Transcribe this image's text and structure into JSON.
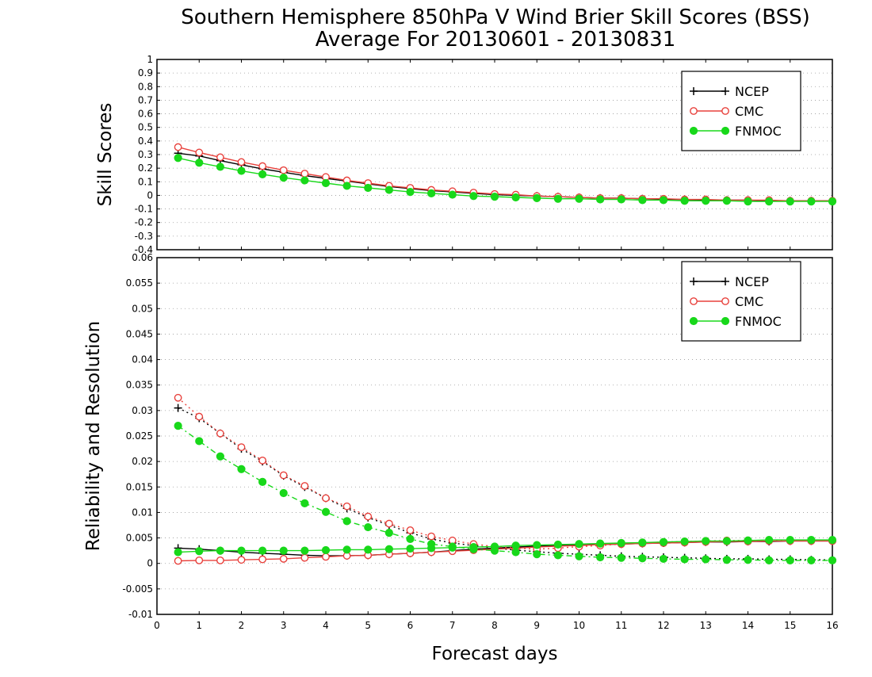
{
  "title": "Southern Hemisphere 850hPa V Wind Brier Skill Scores (BSS)",
  "subtitle": "Average For 20130601 - 20130831",
  "xlabel": "Forecast days",
  "legend": [
    "NCEP",
    "CMC",
    "FNMOC"
  ],
  "colors": {
    "NCEP": "#000000",
    "CMC": "#e8413c",
    "FNMOC": "#18d81a"
  },
  "chart_data": [
    {
      "type": "line",
      "panel": "top",
      "ylabel": "Skill Scores",
      "ylim": [
        -0.4,
        1
      ],
      "yticks": [
        "1",
        "0.9",
        "0.8",
        "0.7",
        "0.6",
        "0.5",
        "0.4",
        "0.3",
        "0.2",
        "0.1",
        "0",
        "-0.1",
        "-0.2",
        "-0.3",
        "-0.4"
      ],
      "xlim": [
        0,
        16
      ],
      "grid": true,
      "legend_position": "top-right",
      "x": [
        0.5,
        1,
        1.5,
        2,
        2.5,
        3,
        3.5,
        4,
        4.5,
        5,
        5.5,
        6,
        6.5,
        7,
        7.5,
        8,
        8.5,
        9,
        9.5,
        10,
        10.5,
        11,
        11.5,
        12,
        12.5,
        13,
        13.5,
        14,
        14.5,
        15,
        15.5,
        16
      ],
      "series": [
        {
          "name": "NCEP",
          "marker": "plus",
          "line": "solid",
          "values": [
            0.31,
            0.29,
            0.255,
            0.225,
            0.195,
            0.17,
            0.145,
            0.125,
            0.105,
            0.085,
            0.065,
            0.05,
            0.035,
            0.025,
            0.015,
            0.005,
            0,
            -0.005,
            -0.01,
            -0.015,
            -0.02,
            -0.02,
            -0.025,
            -0.03,
            -0.03,
            -0.035,
            -0.035,
            -0.035,
            -0.04,
            -0.04,
            -0.04,
            -0.04
          ]
        },
        {
          "name": "CMC",
          "marker": "open-circle",
          "line": "solid",
          "values": [
            0.355,
            0.315,
            0.28,
            0.245,
            0.215,
            0.185,
            0.16,
            0.135,
            0.11,
            0.09,
            0.07,
            0.055,
            0.04,
            0.03,
            0.02,
            0.01,
            0.005,
            -0.005,
            -0.01,
            -0.015,
            -0.02,
            -0.02,
            -0.025,
            -0.025,
            -0.03,
            -0.03,
            -0.035,
            -0.035,
            -0.035,
            -0.04,
            -0.04,
            -0.04
          ]
        },
        {
          "name": "FNMOC",
          "marker": "filled-circle",
          "line": "solid",
          "values": [
            0.275,
            0.24,
            0.21,
            0.18,
            0.155,
            0.13,
            0.11,
            0.09,
            0.07,
            0.055,
            0.04,
            0.025,
            0.015,
            0.005,
            -0.005,
            -0.01,
            -0.015,
            -0.02,
            -0.025,
            -0.025,
            -0.03,
            -0.03,
            -0.035,
            -0.035,
            -0.04,
            -0.04,
            -0.04,
            -0.045,
            -0.045,
            -0.045,
            -0.045,
            -0.045
          ]
        }
      ]
    },
    {
      "type": "line",
      "panel": "bottom",
      "ylabel": "Reliability and Resolution",
      "ylim": [
        -0.01,
        0.06
      ],
      "yticks": [
        "0.06",
        "0.055",
        "0.05",
        "0.045",
        "0.04",
        "0.035",
        "0.03",
        "0.025",
        "0.02",
        "0.015",
        "0.01",
        "0.005",
        "0",
        "-0.005",
        "-0.01"
      ],
      "xlim": [
        0,
        16
      ],
      "xticks": [
        "0",
        "1",
        "2",
        "3",
        "4",
        "5",
        "6",
        "7",
        "8",
        "9",
        "10",
        "11",
        "12",
        "13",
        "14",
        "15",
        "16"
      ],
      "grid": true,
      "legend_position": "top-right",
      "x": [
        0.5,
        1,
        1.5,
        2,
        2.5,
        3,
        3.5,
        4,
        4.5,
        5,
        5.5,
        6,
        6.5,
        7,
        7.5,
        8,
        8.5,
        9,
        9.5,
        10,
        10.5,
        11,
        11.5,
        12,
        12.5,
        13,
        13.5,
        14,
        14.5,
        15,
        15.5,
        16
      ],
      "series": [
        {
          "name": "NCEP reliability",
          "legend": "NCEP",
          "marker": "plus",
          "line": "solid",
          "values": [
            0.003,
            0.0028,
            0.0025,
            0.0022,
            0.002,
            0.0018,
            0.0016,
            0.0015,
            0.0015,
            0.0016,
            0.0018,
            0.002,
            0.0022,
            0.0025,
            0.0028,
            0.003,
            0.0032,
            0.0034,
            0.0035,
            0.0036,
            0.0037,
            0.0038,
            0.0039,
            0.004,
            0.0041,
            0.0042,
            0.0042,
            0.0043,
            0.0043,
            0.0044,
            0.0044,
            0.0044
          ]
        },
        {
          "name": "NCEP resolution",
          "legend": "NCEP",
          "marker": "plus",
          "line": "dotted",
          "values": [
            0.0305,
            0.0285,
            0.0255,
            0.0225,
            0.02,
            0.0172,
            0.015,
            0.0128,
            0.0108,
            0.009,
            0.0075,
            0.006,
            0.0048,
            0.004,
            0.0035,
            0.003,
            0.0026,
            0.0023,
            0.002,
            0.0018,
            0.0016,
            0.0014,
            0.0013,
            0.0012,
            0.0011,
            0.001,
            0.0009,
            0.0009,
            0.0008,
            0.0008,
            0.0007,
            0.0007
          ]
        },
        {
          "name": "CMC reliability",
          "legend": "CMC",
          "marker": "open-circle",
          "line": "solid",
          "values": [
            0.0005,
            0.0006,
            0.0006,
            0.0007,
            0.0008,
            0.0009,
            0.0011,
            0.0013,
            0.0015,
            0.0016,
            0.0018,
            0.002,
            0.0022,
            0.0024,
            0.0026,
            0.0028,
            0.003,
            0.0032,
            0.0034,
            0.0035,
            0.0037,
            0.0038,
            0.0039,
            0.004,
            0.0041,
            0.0042,
            0.0043,
            0.0043,
            0.0044,
            0.0044,
            0.0044,
            0.0044
          ]
        },
        {
          "name": "CMC resolution",
          "legend": "CMC",
          "marker": "open-circle",
          "line": "dotted",
          "values": [
            0.0325,
            0.0288,
            0.0255,
            0.0228,
            0.0202,
            0.0173,
            0.0152,
            0.0128,
            0.0112,
            0.0092,
            0.0078,
            0.0065,
            0.0053,
            0.0045,
            0.0038,
            0.0033,
            0.003,
            0.0028,
            0.003,
            0.0033,
            0.0035,
            0.0038,
            0.004,
            0.0042,
            0.0043,
            0.0044,
            0.0045,
            0.0045,
            0.0045,
            0.0045,
            0.0045,
            0.0044
          ]
        },
        {
          "name": "FNMOC reliability",
          "legend": "FNMOC",
          "marker": "filled-circle",
          "line": "solid",
          "values": [
            0.0022,
            0.0024,
            0.0025,
            0.0025,
            0.0025,
            0.0025,
            0.0025,
            0.0026,
            0.0027,
            0.0027,
            0.0028,
            0.0029,
            0.003,
            0.0031,
            0.0032,
            0.0033,
            0.0035,
            0.0036,
            0.0037,
            0.0038,
            0.0039,
            0.004,
            0.0041,
            0.0042,
            0.0043,
            0.0044,
            0.0044,
            0.0045,
            0.0046,
            0.0046,
            0.0046,
            0.0046
          ]
        },
        {
          "name": "FNMOC resolution",
          "legend": "FNMOC",
          "marker": "filled-circle",
          "line": "dashdot",
          "values": [
            0.027,
            0.024,
            0.021,
            0.0185,
            0.016,
            0.0138,
            0.0118,
            0.0101,
            0.0083,
            0.0071,
            0.006,
            0.0048,
            0.0038,
            0.0033,
            0.0028,
            0.0025,
            0.0022,
            0.0018,
            0.0016,
            0.0014,
            0.0012,
            0.0011,
            0.001,
            0.0009,
            0.0008,
            0.0008,
            0.0007,
            0.0007,
            0.0006,
            0.0006,
            0.0006,
            0.0006
          ]
        }
      ]
    }
  ]
}
